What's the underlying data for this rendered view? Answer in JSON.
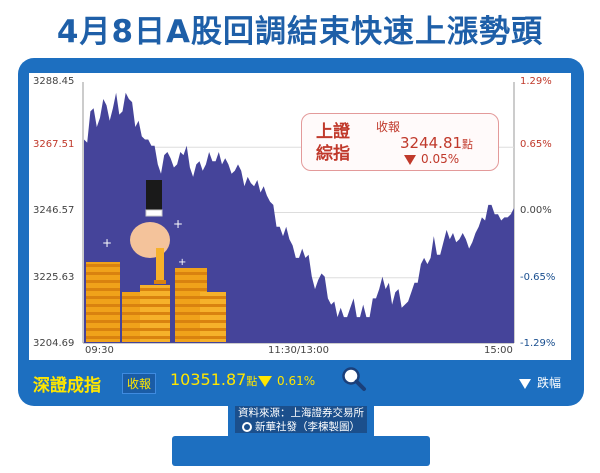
{
  "title": "4月8日A股回調結束快速上漲勢頭",
  "chart_data": {
    "type": "area",
    "y_left_ticks": [
      "3288.45",
      "3267.51",
      "3246.57",
      "3225.63",
      "3204.69"
    ],
    "y_right_ticks": [
      "1.29%",
      "0.65%",
      "0.00%",
      "-0.65%",
      "-1.29%"
    ],
    "ylim": [
      3204.69,
      3288.45
    ],
    "x_ticks": [
      "09:30",
      "11:30/13:00",
      "15:00"
    ],
    "fill_color": "#45449a",
    "series": [
      {
        "values": [
          3270,
          3269,
          3279,
          3280,
          3274,
          3277,
          3283,
          3281,
          3276,
          3280,
          3285,
          3278,
          3279,
          3285,
          3283,
          3282,
          3274,
          3276,
          3271,
          3270,
          3270,
          3268,
          3268,
          3262,
          3259,
          3265,
          3266,
          3264,
          3261,
          3262,
          3266,
          3265,
          3268,
          3261,
          3258,
          3262,
          3263,
          3260,
          3262,
          3266,
          3263,
          3263,
          3266,
          3262,
          3264,
          3262,
          3259,
          3260,
          3262,
          3260,
          3255,
          3258,
          3256,
          3255,
          3257,
          3253,
          3255,
          3252,
          3250,
          3249,
          3242,
          3242,
          3239,
          3242,
          3238,
          3236,
          3232,
          3232,
          3235,
          3232,
          3233,
          3226,
          3222,
          3225,
          3227,
          3226,
          3219,
          3217,
          3218,
          3213,
          3216,
          3213,
          3213,
          3216,
          3219,
          3213,
          3213,
          3217,
          3213,
          3213,
          3219,
          3219,
          3222,
          3226,
          3222,
          3224,
          3217,
          3221,
          3222,
          3216,
          3217,
          3218,
          3221,
          3224,
          3224,
          3230,
          3232,
          3230,
          3232,
          3239,
          3233,
          3233,
          3237,
          3241,
          3238,
          3240,
          3237,
          3238,
          3240,
          3238,
          3235,
          3237,
          3240,
          3242,
          3245,
          3244,
          3249,
          3249,
          3246,
          3246,
          3244,
          3245,
          3245,
          3246,
          3248
        ]
      }
    ]
  },
  "quote_shanghai": {
    "name": "上證綜指",
    "close_label": "收報",
    "value": "3244.81",
    "unit": "點",
    "change": "0.05%"
  },
  "quote_shenzhen": {
    "name": "深證成指",
    "close_label": "收報",
    "value": "10351.87",
    "unit": "點",
    "change": "0.61%"
  },
  "legend": "跌幅",
  "source": {
    "line1": "資料來源：上海證券交易所",
    "line2": "新華社發（李楝製圖）"
  },
  "colors": {
    "frame": "#1d6fc0",
    "title": "#1e5fa8",
    "accent_red": "#c0392b",
    "accent_yellow": "#ffe600"
  }
}
